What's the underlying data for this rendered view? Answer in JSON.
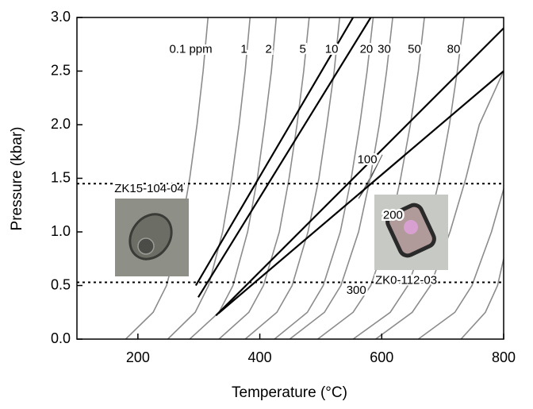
{
  "chart_data": {
    "type": "line",
    "xlabel": "Temperature (°C)",
    "ylabel": "Pressure (kbar)",
    "xlim": [
      100,
      800
    ],
    "xticks": [
      200,
      400,
      600,
      800
    ],
    "ylim": [
      0,
      3
    ],
    "yticks": [
      {
        "value": 0,
        "label": "0.0"
      },
      0.5,
      {
        "value": 1,
        "label": "1.0"
      },
      1.5,
      {
        "value": 2,
        "label": "2.0"
      },
      2.5,
      {
        "value": 3,
        "label": "3.0"
      }
    ],
    "series": [
      {
        "name": "0.1 ppm",
        "color": "#8c8c8c",
        "x": [
          180,
          225,
          247,
          270,
          285,
          297,
          307,
          315
        ],
        "y": [
          0,
          0.25,
          0.5,
          1,
          1.5,
          2,
          2.5,
          3
        ]
      },
      {
        "name": "1",
        "color": "#8c8c8c",
        "x": [
          249,
          294,
          316,
          339,
          354,
          366,
          376,
          384
        ],
        "y": [
          0,
          0.25,
          0.5,
          1,
          1.5,
          2,
          2.5,
          3
        ]
      },
      {
        "name": "2",
        "color": "#8c8c8c",
        "x": [
          285,
          333,
          356,
          380,
          396,
          408,
          419,
          427
        ],
        "y": [
          0,
          0.25,
          0.5,
          1,
          1.5,
          2,
          2.5,
          3
        ]
      },
      {
        "name": "5",
        "color": "#8c8c8c",
        "x": [
          333,
          382,
          406,
          432,
          448,
          461,
          472,
          481
        ],
        "y": [
          0,
          0.25,
          0.5,
          1,
          1.5,
          2,
          2.5,
          3
        ]
      },
      {
        "name": "10",
        "color": "#8c8c8c",
        "x": [
          376,
          428,
          453,
          479,
          497,
          510,
          522,
          531
        ],
        "y": [
          0,
          0.25,
          0.5,
          1,
          1.5,
          2,
          2.5,
          3
        ]
      },
      {
        "name": "20",
        "color": "#8c8c8c",
        "x": [
          424,
          478,
          504,
          532,
          550,
          564,
          576,
          586
        ],
        "y": [
          0,
          0.25,
          0.5,
          1,
          1.5,
          2,
          2.5,
          3
        ]
      },
      {
        "name": "30",
        "color": "#8c8c8c",
        "x": [
          449,
          506,
          533,
          562,
          581,
          596,
          608,
          618
        ],
        "y": [
          0,
          0.25,
          0.5,
          1,
          1.5,
          2,
          2.5,
          3
        ]
      },
      {
        "name": "50",
        "color": "#8c8c8c",
        "x": [
          495,
          553,
          582,
          612,
          631,
          647,
          660,
          670
        ],
        "y": [
          0,
          0.25,
          0.5,
          1,
          1.5,
          2,
          2.5,
          3
        ]
      },
      {
        "name": "80",
        "color": "#8c8c8c",
        "x": [
          553,
          614,
          643,
          674,
          695,
          711,
          724,
          735
        ],
        "y": [
          0,
          0.25,
          0.5,
          1,
          1.5,
          2,
          2.5,
          3
        ]
      },
      {
        "name": "100",
        "color": "#8c8c8c",
        "x": [
          590,
          650,
          680,
          712,
          738,
          760,
          800
        ],
        "y": [
          0,
          0.25,
          0.5,
          1,
          1.5,
          2,
          2.5
        ]
      },
      {
        "name": "200",
        "color": "#8c8c8c",
        "x": [
          660,
          720,
          748,
          780,
          800
        ],
        "y": [
          0,
          0.25,
          0.5,
          1,
          1.4
        ]
      },
      {
        "name": "300",
        "color": "#8c8c8c",
        "x": [
          730,
          770,
          790,
          800
        ],
        "y": [
          0,
          0.25,
          0.5,
          0.75
        ]
      }
    ],
    "isochores": [
      {
        "color": "#000000",
        "x": [
          295,
          553
        ],
        "y": [
          0.5,
          3
        ]
      },
      {
        "color": "#000000",
        "x": [
          299,
          582
        ],
        "y": [
          0.39,
          3
        ]
      },
      {
        "color": "#000000",
        "x": [
          328,
          800
        ],
        "y": [
          0.22,
          2.9
        ]
      },
      {
        "color": "#000000",
        "x": [
          332,
          800
        ],
        "y": [
          0.24,
          2.5
        ]
      }
    ],
    "field": {
      "color": "#c8c8c8",
      "x": [
        562,
        594,
        601,
        575
      ],
      "y": [
        1.31,
        1.64,
        1.72,
        1.42
      ]
    },
    "hlines": [
      {
        "label": "ZK15-104-04",
        "value": 1.45
      },
      {
        "label": "ZK0-112-03",
        "value": 0.53
      }
    ]
  }
}
